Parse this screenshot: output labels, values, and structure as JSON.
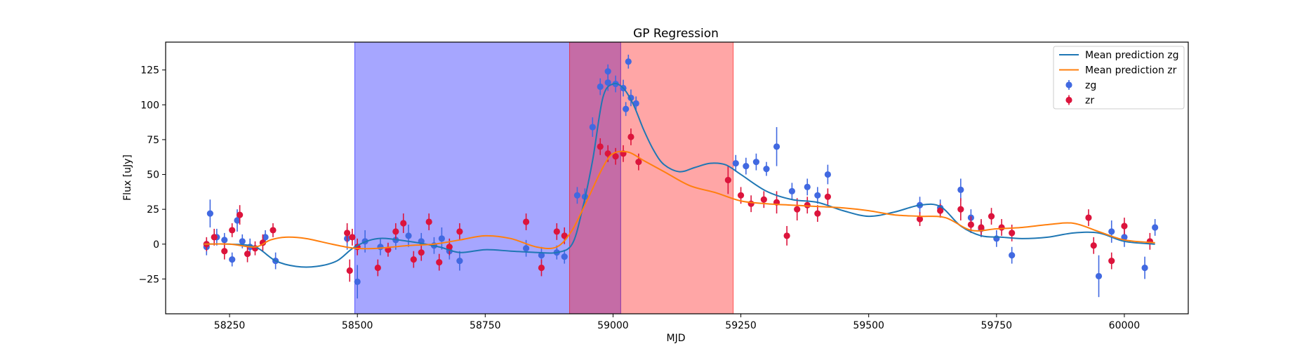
{
  "chart_data": {
    "type": "scatter",
    "title": "GP Regression",
    "xlabel": "MJD",
    "ylabel": "Flux [uJy]",
    "xlim": [
      58125,
      60125
    ],
    "ylim": [
      -50,
      145
    ],
    "xticks": [
      58250,
      58500,
      58750,
      59000,
      59250,
      59500,
      59750,
      60000
    ],
    "yticks": [
      -25,
      0,
      25,
      50,
      75,
      100,
      125
    ],
    "grid": false,
    "legend": "top-right",
    "shaded_regions": [
      {
        "x0": 58495,
        "x1": 59015,
        "color": "#0000ff",
        "opacity": 0.35
      },
      {
        "x0": 58915,
        "x1": 59235,
        "color": "#ff0000",
        "opacity": 0.35
      }
    ],
    "series": [
      {
        "name": "Mean prediction zg",
        "kind": "line",
        "color": "#1f77b4",
        "x": [
          58200,
          58250,
          58300,
          58340,
          58380,
          58420,
          58460,
          58495,
          58540,
          58600,
          58660,
          58700,
          58750,
          58800,
          58850,
          58890,
          58920,
          58940,
          58960,
          58980,
          59000,
          59020,
          59040,
          59060,
          59080,
          59100,
          59130,
          59160,
          59190,
          59220,
          59250,
          59300,
          59350,
          59400,
          59450,
          59500,
          59550,
          59600,
          59640,
          59680,
          59720,
          59760,
          59800,
          59850,
          59900,
          59950,
          60000,
          60060
        ],
        "y": [
          0,
          0,
          -2,
          -12,
          -16,
          -16,
          -12,
          -2,
          4,
          2,
          -2,
          -6,
          -4,
          -5,
          -6,
          -6,
          0,
          25,
          60,
          105,
          115,
          112,
          100,
          82,
          67,
          57,
          52,
          55,
          58,
          57,
          50,
          38,
          32,
          30,
          24,
          20,
          23,
          28,
          27,
          13,
          6,
          5,
          4,
          5,
          8,
          8,
          2,
          0
        ]
      },
      {
        "name": "Mean prediction zr",
        "kind": "line",
        "color": "#ff7f0e",
        "x": [
          58200,
          58250,
          58300,
          58330,
          58360,
          58400,
          58450,
          58495,
          58540,
          58600,
          58650,
          58700,
          58750,
          58800,
          58850,
          58890,
          58920,
          58950,
          58980,
          59000,
          59030,
          59060,
          59100,
          59150,
          59200,
          59250,
          59300,
          59350,
          59400,
          59450,
          59500,
          59550,
          59600,
          59650,
          59700,
          59750,
          59800,
          59850,
          59900,
          59950,
          60000,
          60060
        ],
        "y": [
          0,
          0,
          -2,
          3,
          5,
          4,
          0,
          -3,
          -3,
          -1,
          0,
          3,
          6,
          4,
          -2,
          -2,
          10,
          32,
          55,
          65,
          66,
          60,
          52,
          42,
          37,
          31,
          29,
          28,
          27,
          26,
          24,
          21,
          20,
          19,
          10,
          11,
          12,
          14,
          15,
          9,
          3,
          1
        ]
      },
      {
        "name": "zg",
        "kind": "errorbar",
        "color": "#4169e1",
        "x": [
          58205,
          58212,
          58225,
          58240,
          58255,
          58265,
          58275,
          58290,
          58320,
          58340,
          58480,
          58500,
          58515,
          58545,
          58575,
          58600,
          58625,
          58650,
          58665,
          58680,
          58700,
          58830,
          58860,
          58890,
          58905,
          58930,
          58945,
          58960,
          58975,
          58990,
          59005,
          59020,
          59035,
          59045,
          59240,
          59260,
          59280,
          59300,
          59320,
          59350,
          59380,
          59400,
          59420,
          59600,
          59640,
          59680,
          59700,
          59720,
          59750,
          59780,
          59950,
          59975,
          60000,
          60040,
          60060
        ],
        "y": [
          -2,
          22,
          5,
          3,
          -11,
          17,
          2,
          -2,
          5,
          -12,
          4,
          -27,
          2,
          -2,
          3,
          6,
          2,
          -1,
          4,
          -5,
          -12,
          -3,
          -8,
          -6,
          -9,
          35,
          34,
          84,
          113,
          116,
          115,
          112,
          105,
          101,
          58,
          56,
          59,
          54,
          70,
          38,
          41,
          35,
          50,
          28,
          26,
          39,
          19,
          11,
          4,
          -8,
          -23,
          9,
          5,
          -17,
          12
        ],
        "yerr": [
          6,
          10,
          6,
          5,
          5,
          8,
          5,
          6,
          5,
          6,
          8,
          12,
          8,
          6,
          7,
          8,
          6,
          6,
          8,
          6,
          7,
          6,
          6,
          5,
          5,
          6,
          6,
          7,
          6,
          6,
          6,
          6,
          6,
          5,
          6,
          6,
          6,
          5,
          14,
          6,
          6,
          6,
          7,
          6,
          6,
          8,
          6,
          6,
          6,
          6,
          15,
          8,
          7,
          8,
          6
        ],
        "extra_points": [
          [
            58990,
            124
          ],
          [
            59030,
            131
          ],
          [
            59025,
            97
          ]
        ]
      },
      {
        "name": "zr",
        "kind": "errorbar",
        "color": "#dc143c",
        "x": [
          58205,
          58220,
          58240,
          58255,
          58270,
          58285,
          58300,
          58315,
          58335,
          58480,
          58485,
          58490,
          58500,
          58540,
          58560,
          58575,
          58590,
          58610,
          58625,
          58640,
          58660,
          58680,
          58700,
          58830,
          58860,
          58890,
          58905,
          58975,
          58990,
          59005,
          59020,
          59035,
          59050,
          59225,
          59250,
          59270,
          59295,
          59320,
          59340,
          59360,
          59380,
          59400,
          59420,
          59600,
          59640,
          59680,
          59700,
          59720,
          59740,
          59760,
          59780,
          59930,
          59940,
          59975,
          60000,
          60050
        ],
        "y": [
          0,
          5,
          -5,
          10,
          21,
          -7,
          -3,
          1,
          10,
          8,
          -19,
          5,
          -2,
          -17,
          -4,
          9,
          15,
          -11,
          -6,
          16,
          -13,
          -2,
          9,
          16,
          -17,
          9,
          6,
          70,
          65,
          63,
          65,
          77,
          59,
          46,
          35,
          29,
          32,
          30,
          6,
          25,
          28,
          22,
          34,
          18,
          24,
          25,
          14,
          12,
          20,
          12,
          8,
          19,
          -1,
          -12,
          13,
          2
        ],
        "yerr": [
          5,
          6,
          6,
          5,
          7,
          6,
          5,
          6,
          5,
          7,
          8,
          6,
          6,
          6,
          5,
          6,
          7,
          6,
          6,
          6,
          6,
          6,
          6,
          6,
          6,
          6,
          6,
          6,
          6,
          6,
          6,
          6,
          6,
          10,
          6,
          6,
          6,
          8,
          7,
          8,
          6,
          6,
          6,
          5,
          5,
          8,
          6,
          6,
          6,
          6,
          6,
          6,
          6,
          6,
          6,
          6
        ]
      }
    ]
  }
}
